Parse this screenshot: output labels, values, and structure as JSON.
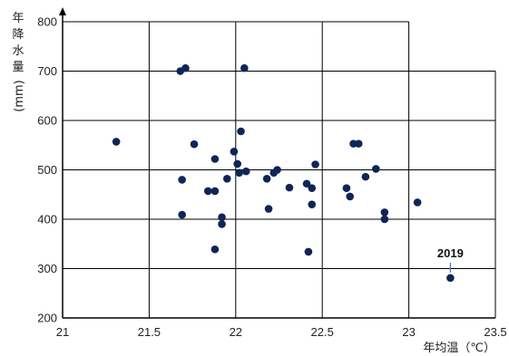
{
  "chart_data": {
    "type": "scatter",
    "xlabel": "年均温（℃）",
    "ylabel_chars": [
      "年",
      "降",
      "水",
      "量"
    ],
    "ylabel_unit": "(mm)",
    "xlim": [
      21,
      23.5
    ],
    "ylim": [
      200,
      800
    ],
    "xticks": [
      "21",
      "21.5",
      "22",
      "22.5",
      "23",
      "23.5"
    ],
    "yticks": [
      "200",
      "300",
      "400",
      "500",
      "600",
      "700",
      "800"
    ],
    "grid": true,
    "colors": {
      "points": "#0f2557",
      "grid": "#000000",
      "annotation_line": "#4a6fd1"
    },
    "points": [
      {
        "x": 21.31,
        "y": 557
      },
      {
        "x": 21.68,
        "y": 700
      },
      {
        "x": 21.71,
        "y": 706
      },
      {
        "x": 21.69,
        "y": 480
      },
      {
        "x": 21.69,
        "y": 409
      },
      {
        "x": 21.76,
        "y": 552
      },
      {
        "x": 21.84,
        "y": 457
      },
      {
        "x": 21.88,
        "y": 457
      },
      {
        "x": 21.88,
        "y": 522
      },
      {
        "x": 21.88,
        "y": 339
      },
      {
        "x": 21.92,
        "y": 404
      },
      {
        "x": 21.92,
        "y": 390
      },
      {
        "x": 21.95,
        "y": 482
      },
      {
        "x": 21.99,
        "y": 537
      },
      {
        "x": 22.01,
        "y": 512
      },
      {
        "x": 22.02,
        "y": 494
      },
      {
        "x": 22.03,
        "y": 578
      },
      {
        "x": 22.05,
        "y": 706
      },
      {
        "x": 22.06,
        "y": 497
      },
      {
        "x": 22.18,
        "y": 482
      },
      {
        "x": 22.19,
        "y": 421
      },
      {
        "x": 22.22,
        "y": 494
      },
      {
        "x": 22.24,
        "y": 500
      },
      {
        "x": 22.31,
        "y": 464
      },
      {
        "x": 22.41,
        "y": 472
      },
      {
        "x": 22.42,
        "y": 334
      },
      {
        "x": 22.44,
        "y": 430
      },
      {
        "x": 22.44,
        "y": 463
      },
      {
        "x": 22.46,
        "y": 511
      },
      {
        "x": 22.64,
        "y": 463
      },
      {
        "x": 22.66,
        "y": 446
      },
      {
        "x": 22.68,
        "y": 553
      },
      {
        "x": 22.71,
        "y": 553
      },
      {
        "x": 22.75,
        "y": 486
      },
      {
        "x": 22.81,
        "y": 502
      },
      {
        "x": 22.86,
        "y": 414
      },
      {
        "x": 22.86,
        "y": 400
      },
      {
        "x": 23.05,
        "y": 434
      },
      {
        "x": 23.24,
        "y": 281
      }
    ],
    "annotations": [
      {
        "text": "2019",
        "x": 23.24,
        "y": 281
      }
    ]
  }
}
